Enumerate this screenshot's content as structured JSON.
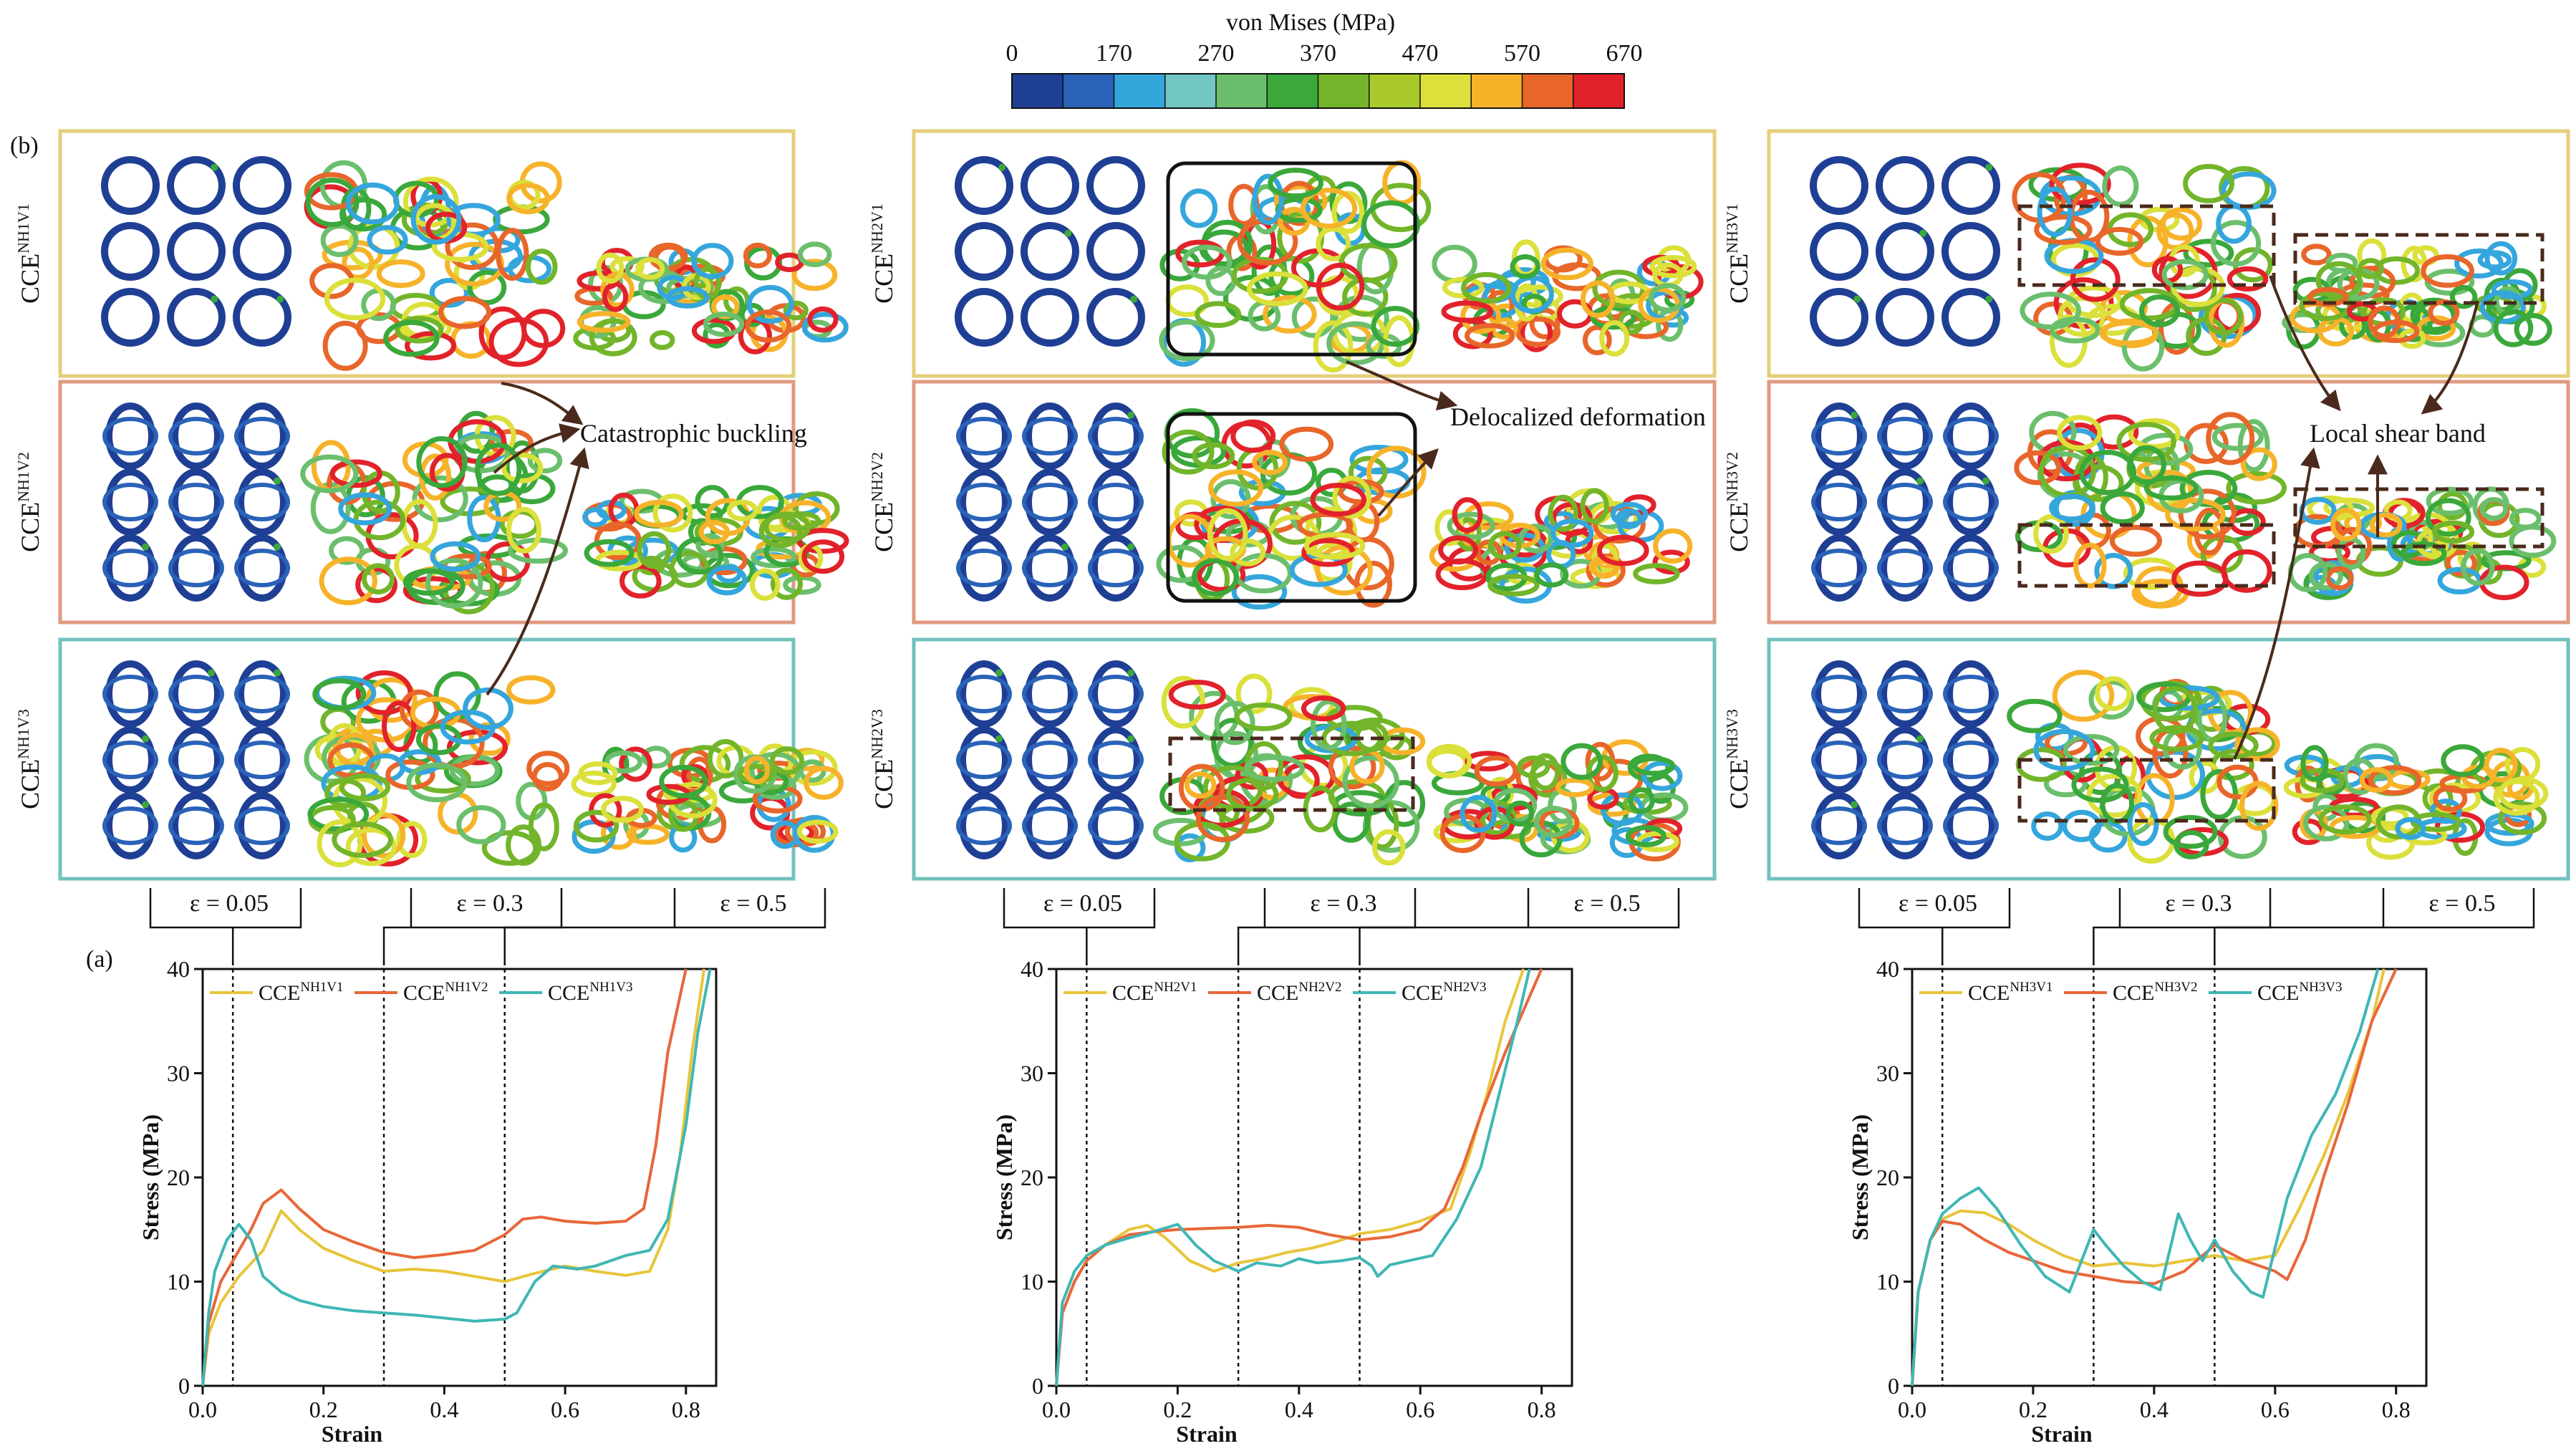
{
  "colorbar": {
    "title": "von Mises (MPa)",
    "tick_labels": [
      "0",
      "170",
      "270",
      "370",
      "470",
      "570",
      "670"
    ],
    "colors": [
      "#1f3f95",
      "#2a62b8",
      "#35a6dc",
      "#72c6c4",
      "#6bbf6c",
      "#3aa83b",
      "#72b52a",
      "#a9c92b",
      "#dbe03a",
      "#f6b32a",
      "#e8662a",
      "#e2222b"
    ]
  },
  "panel_labels": {
    "a": "(a)",
    "b": "(b)"
  },
  "colors": {
    "V1": "#e8c53a",
    "V2": "#e8673a",
    "V3": "#3fb7b4",
    "box_V1": "#e4cf7a",
    "box_V2": "#e09a80",
    "box_V3": "#72c1bd",
    "tube_blue": "#1f3f95",
    "stress_red": "#e2222b"
  },
  "annotations": {
    "left": "Catastrophic buckling",
    "middle": "Delocalized deformation",
    "right": "Local shear band"
  },
  "strain_labels": [
    "ε = 0.05",
    "ε = 0.3",
    "ε = 0.5"
  ],
  "row_labels": [
    [
      {
        "base": "CCE",
        "sup": "NH1V1"
      },
      {
        "base": "CCE",
        "sup": "NH1V2"
      },
      {
        "base": "CCE",
        "sup": "NH1V3"
      }
    ],
    [
      {
        "base": "CCE",
        "sup": "NH2V1"
      },
      {
        "base": "CCE",
        "sup": "NH2V2"
      },
      {
        "base": "CCE",
        "sup": "NH2V3"
      }
    ],
    [
      {
        "base": "CCE",
        "sup": "NH3V1"
      },
      {
        "base": "CCE",
        "sup": "NH3V2"
      },
      {
        "base": "CCE",
        "sup": "NH3V3"
      }
    ]
  ],
  "chart_data": [
    {
      "type": "line",
      "xlabel": "Strain",
      "ylabel": "Stress (MPa)",
      "xlim": [
        0,
        0.85
      ],
      "ylim": [
        0,
        40
      ],
      "xticks": [
        "0.0",
        "0.2",
        "0.4",
        "0.6",
        "0.8"
      ],
      "yticks": [
        "0",
        "10",
        "20",
        "30",
        "40"
      ],
      "markers": [
        0.05,
        0.3,
        0.5
      ],
      "series": [
        {
          "base": "CCE",
          "sup": "NH1V1",
          "color": "#e8c53a",
          "x": [
            0,
            0.01,
            0.03,
            0.06,
            0.1,
            0.13,
            0.16,
            0.2,
            0.25,
            0.3,
            0.35,
            0.4,
            0.45,
            0.5,
            0.55,
            0.6,
            0.65,
            0.7,
            0.74,
            0.77,
            0.79,
            0.81,
            0.83
          ],
          "y": [
            0,
            5,
            8,
            10.5,
            13,
            16.8,
            15,
            13.2,
            12,
            11,
            11.2,
            11,
            10.5,
            10,
            10.8,
            11.5,
            11,
            10.6,
            11,
            15,
            22,
            32,
            40
          ]
        },
        {
          "base": "CCE",
          "sup": "NH1V2",
          "color": "#e8673a",
          "x": [
            0,
            0.01,
            0.03,
            0.05,
            0.08,
            0.1,
            0.13,
            0.16,
            0.2,
            0.25,
            0.3,
            0.35,
            0.4,
            0.45,
            0.5,
            0.53,
            0.56,
            0.6,
            0.65,
            0.7,
            0.73,
            0.75,
            0.77,
            0.8
          ],
          "y": [
            0,
            6,
            10,
            12,
            15,
            17.5,
            18.8,
            17,
            15,
            13.8,
            12.8,
            12.3,
            12.6,
            13,
            14.5,
            16,
            16.2,
            15.8,
            15.6,
            15.8,
            17,
            23,
            32,
            40
          ]
        },
        {
          "base": "CCE",
          "sup": "NH1V3",
          "color": "#3fb7b4",
          "x": [
            0,
            0.01,
            0.02,
            0.04,
            0.06,
            0.08,
            0.1,
            0.13,
            0.16,
            0.2,
            0.25,
            0.3,
            0.35,
            0.4,
            0.45,
            0.5,
            0.52,
            0.55,
            0.58,
            0.62,
            0.65,
            0.7,
            0.74,
            0.77,
            0.8,
            0.82,
            0.84
          ],
          "y": [
            0,
            7,
            11,
            14,
            15.5,
            14,
            10.5,
            9,
            8.2,
            7.6,
            7.2,
            7,
            6.8,
            6.5,
            6.2,
            6.4,
            7,
            10,
            11.5,
            11.2,
            11.5,
            12.5,
            13,
            16,
            25,
            34,
            40
          ]
        }
      ]
    },
    {
      "type": "line",
      "xlabel": "Strain",
      "ylabel": "Stress (MPa)",
      "xlim": [
        0,
        0.85
      ],
      "ylim": [
        0,
        40
      ],
      "xticks": [
        "0.0",
        "0.2",
        "0.4",
        "0.6",
        "0.8"
      ],
      "yticks": [
        "0",
        "10",
        "20",
        "30",
        "40"
      ],
      "markers": [
        0.05,
        0.3,
        0.5
      ],
      "series": [
        {
          "base": "CCE",
          "sup": "NH2V1",
          "color": "#e8c53a",
          "x": [
            0,
            0.01,
            0.03,
            0.05,
            0.08,
            0.12,
            0.15,
            0.18,
            0.22,
            0.26,
            0.3,
            0.34,
            0.38,
            0.42,
            0.46,
            0.5,
            0.55,
            0.6,
            0.65,
            0.68,
            0.71,
            0.74,
            0.77
          ],
          "y": [
            0,
            7,
            10,
            12,
            13.5,
            15,
            15.4,
            14.2,
            12,
            11,
            11.8,
            12.2,
            12.8,
            13.2,
            13.8,
            14.6,
            15,
            15.8,
            17,
            22,
            28,
            35,
            40
          ]
        },
        {
          "base": "CCE",
          "sup": "NH2V2",
          "color": "#e8673a",
          "x": [
            0,
            0.01,
            0.03,
            0.05,
            0.08,
            0.12,
            0.16,
            0.2,
            0.25,
            0.3,
            0.35,
            0.4,
            0.45,
            0.5,
            0.55,
            0.6,
            0.64,
            0.67,
            0.7,
            0.74,
            0.77,
            0.8
          ],
          "y": [
            0,
            7,
            10,
            12,
            13.5,
            14.5,
            14.8,
            15,
            15.1,
            15.2,
            15.4,
            15.2,
            14.5,
            14,
            14.3,
            15,
            17,
            21,
            26,
            32,
            36,
            40
          ]
        },
        {
          "base": "CCE",
          "sup": "NH2V3",
          "color": "#3fb7b4",
          "x": [
            0,
            0.01,
            0.03,
            0.05,
            0.08,
            0.12,
            0.16,
            0.2,
            0.23,
            0.26,
            0.3,
            0.33,
            0.37,
            0.4,
            0.43,
            0.47,
            0.5,
            0.52,
            0.53,
            0.55,
            0.58,
            0.62,
            0.66,
            0.7,
            0.73,
            0.76,
            0.78
          ],
          "y": [
            0,
            8,
            11,
            12.5,
            13.5,
            14.2,
            14.8,
            15.5,
            13.5,
            12,
            11,
            11.8,
            11.5,
            12.2,
            11.8,
            12,
            12.3,
            11.5,
            10.5,
            11.6,
            12,
            12.5,
            16,
            21,
            28,
            35,
            40
          ]
        }
      ]
    },
    {
      "type": "line",
      "xlabel": "Strain",
      "ylabel": "Stress (MPa)",
      "xlim": [
        0,
        0.85
      ],
      "ylim": [
        0,
        40
      ],
      "xticks": [
        "0.0",
        "0.2",
        "0.4",
        "0.6",
        "0.8"
      ],
      "yticks": [
        "0",
        "10",
        "20",
        "30",
        "40"
      ],
      "markers": [
        0.05,
        0.3,
        0.5
      ],
      "series": [
        {
          "base": "CCE",
          "sup": "NH3V1",
          "color": "#e8c53a",
          "x": [
            0,
            0.01,
            0.03,
            0.05,
            0.08,
            0.12,
            0.16,
            0.2,
            0.25,
            0.3,
            0.35,
            0.4,
            0.45,
            0.5,
            0.55,
            0.6,
            0.64,
            0.68,
            0.72,
            0.76,
            0.78
          ],
          "y": [
            0,
            9,
            14,
            16,
            16.8,
            16.6,
            15.5,
            14,
            12.5,
            11.5,
            11.8,
            11.5,
            12,
            12.5,
            12,
            12.5,
            17,
            22,
            28,
            35,
            40
          ]
        },
        {
          "base": "CCE",
          "sup": "NH3V2",
          "color": "#e8673a",
          "x": [
            0,
            0.01,
            0.03,
            0.05,
            0.08,
            0.12,
            0.16,
            0.2,
            0.25,
            0.3,
            0.35,
            0.4,
            0.45,
            0.5,
            0.55,
            0.6,
            0.62,
            0.65,
            0.68,
            0.72,
            0.76,
            0.8
          ],
          "y": [
            0,
            9,
            14,
            15.8,
            15.5,
            14,
            12.8,
            12,
            11,
            10.5,
            10,
            9.8,
            11,
            13.5,
            12,
            11,
            10.2,
            14,
            20,
            27,
            35,
            40
          ]
        },
        {
          "base": "CCE",
          "sup": "NH3V3",
          "color": "#3fb7b4",
          "x": [
            0,
            0.01,
            0.03,
            0.05,
            0.08,
            0.11,
            0.14,
            0.18,
            0.22,
            0.26,
            0.28,
            0.3,
            0.32,
            0.35,
            0.38,
            0.41,
            0.43,
            0.44,
            0.46,
            0.48,
            0.5,
            0.53,
            0.56,
            0.58,
            0.62,
            0.66,
            0.7,
            0.74,
            0.77
          ],
          "y": [
            0,
            9,
            14,
            16.5,
            18,
            19,
            17,
            13.5,
            10.5,
            9,
            12,
            15,
            13.5,
            11.5,
            10,
            9.2,
            14,
            16.5,
            14,
            12,
            14,
            11,
            9,
            8.5,
            18,
            24,
            28,
            34,
            40
          ]
        }
      ]
    }
  ]
}
